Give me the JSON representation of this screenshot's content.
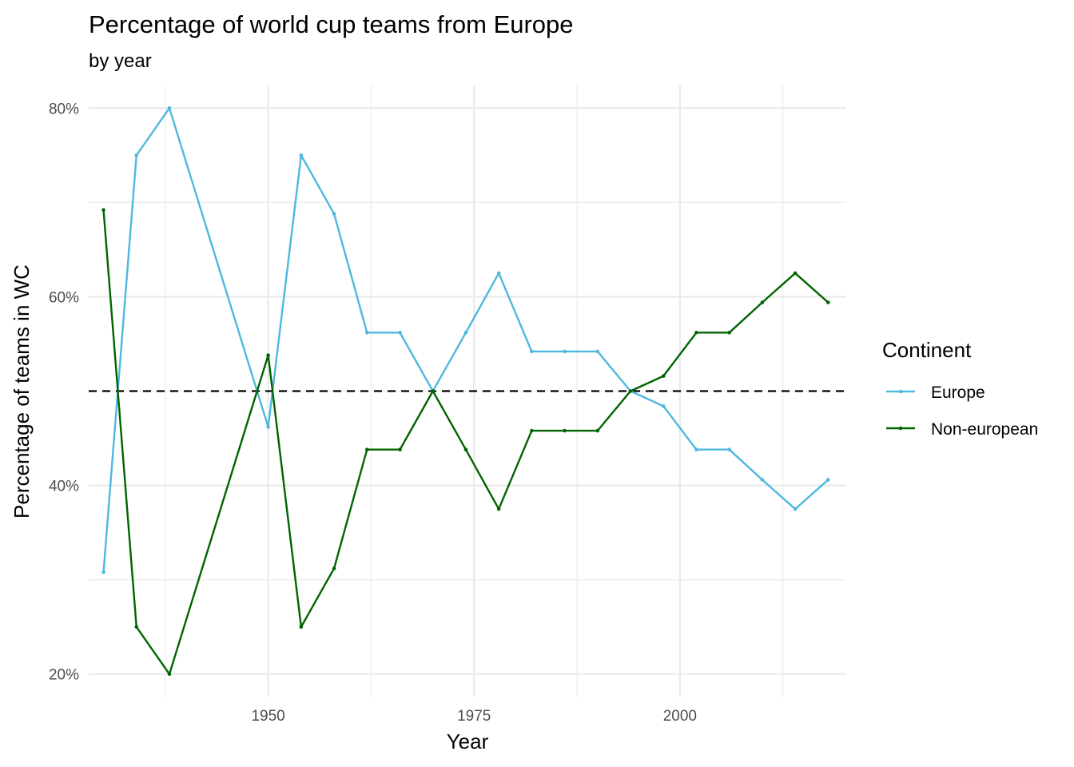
{
  "chart_data": {
    "type": "line",
    "title": "Percentage of world cup teams from Europe",
    "subtitle": "by year",
    "xlabel": "Year",
    "ylabel": "Percentage of teams in WC",
    "xlim": [
      1928.2,
      2020.2
    ],
    "ylim": [
      17.6,
      82.4
    ],
    "x_ticks": [
      1950,
      1975,
      2000
    ],
    "y_ticks": [
      20,
      40,
      60,
      80
    ],
    "y_tick_labels": [
      "20%",
      "40%",
      "60%",
      "80%"
    ],
    "reference_line": {
      "y": 50,
      "style": "dashed",
      "color": "#000000"
    },
    "grid": true,
    "legend": {
      "title": "Continent",
      "position": "right"
    },
    "x": [
      1930,
      1934,
      1938,
      1950,
      1954,
      1958,
      1962,
      1966,
      1970,
      1974,
      1978,
      1982,
      1986,
      1990,
      1994,
      1998,
      2002,
      2006,
      2010,
      2014,
      2018
    ],
    "series": [
      {
        "name": "Europe",
        "color": "#4eb8de",
        "values": [
          30.8,
          75.0,
          80.0,
          46.2,
          75.0,
          68.8,
          56.2,
          56.2,
          50.0,
          56.2,
          62.5,
          54.2,
          54.2,
          54.2,
          50.0,
          48.4,
          43.8,
          43.8,
          40.6,
          37.5,
          40.6
        ]
      },
      {
        "name": "Non-european",
        "color": "#006400",
        "values": [
          69.2,
          25.0,
          20.0,
          53.8,
          25.0,
          31.2,
          43.8,
          43.8,
          50.0,
          43.8,
          37.5,
          45.8,
          45.8,
          45.8,
          50.0,
          51.6,
          56.2,
          56.2,
          59.4,
          62.5,
          59.4
        ]
      }
    ]
  }
}
